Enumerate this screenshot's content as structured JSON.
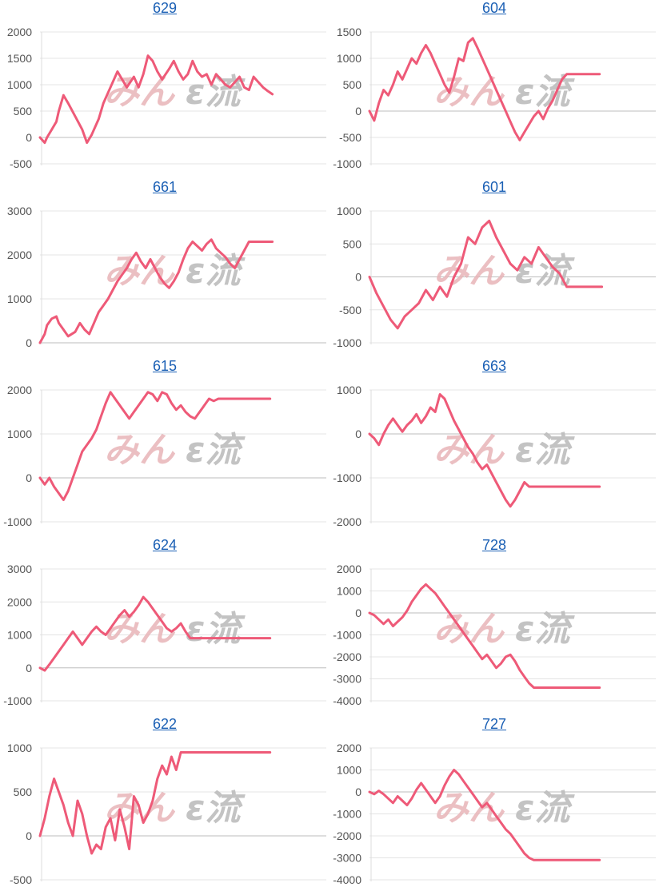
{
  "watermark": {
    "left_text": "みん",
    "right_text": "ε流",
    "left_color": "#e8b4b8",
    "right_color": "#bdbdbd"
  },
  "line_color": "#ee5a78",
  "chart_data": [
    {
      "type": "line",
      "title": "629",
      "ylim": [
        -500,
        2000
      ],
      "yticks": [
        -500,
        0,
        500,
        1000,
        1500,
        2000
      ],
      "x": [
        0,
        2,
        3,
        5,
        7,
        8,
        10,
        12,
        15,
        18,
        20,
        22,
        25,
        27,
        30,
        33,
        35,
        37,
        40,
        42,
        44,
        46,
        48,
        50,
        52,
        55,
        57,
        59,
        61,
        63,
        65,
        67,
        69,
        71,
        73,
        75,
        77,
        79,
        81,
        83,
        85,
        87,
        89,
        91,
        93,
        95,
        97,
        99
      ],
      "values": [
        0,
        -100,
        0,
        150,
        300,
        500,
        800,
        650,
        400,
        150,
        -100,
        50,
        350,
        650,
        950,
        1250,
        1100,
        950,
        1150,
        950,
        1200,
        1550,
        1450,
        1250,
        1100,
        1300,
        1450,
        1250,
        1100,
        1200,
        1450,
        1250,
        1150,
        1200,
        1000,
        1200,
        1100,
        1000,
        950,
        1050,
        1150,
        950,
        900,
        1150,
        1050,
        950,
        880,
        820
      ]
    },
    {
      "type": "line",
      "title": "604",
      "ylim": [
        -1000,
        1500
      ],
      "yticks": [
        -1000,
        -500,
        0,
        500,
        1000,
        1500
      ],
      "x": [
        0,
        2,
        4,
        6,
        8,
        10,
        12,
        14,
        16,
        18,
        20,
        22,
        24,
        26,
        28,
        30,
        32,
        34,
        36,
        38,
        40,
        42,
        44,
        46,
        48,
        50,
        52,
        54,
        56,
        58,
        60,
        62,
        64,
        66,
        68,
        70,
        72,
        74,
        76,
        78,
        80,
        82,
        84,
        86,
        88,
        90,
        92,
        94,
        96,
        98
      ],
      "values": [
        0,
        -180,
        150,
        400,
        300,
        500,
        750,
        600,
        800,
        1000,
        900,
        1100,
        1250,
        1100,
        900,
        700,
        500,
        350,
        650,
        1000,
        950,
        1300,
        1380,
        1200,
        1000,
        800,
        600,
        400,
        200,
        0,
        -200,
        -400,
        -550,
        -400,
        -250,
        -100,
        0,
        -150,
        50,
        200,
        400,
        600,
        700,
        700,
        700,
        700,
        700,
        700,
        700,
        700
      ]
    },
    {
      "type": "line",
      "title": "661",
      "ylim": [
        0,
        3000
      ],
      "yticks": [
        0,
        1000,
        2000,
        3000
      ],
      "x": [
        0,
        2,
        3,
        5,
        7,
        8,
        10,
        12,
        15,
        17,
        19,
        21,
        23,
        25,
        27,
        29,
        31,
        33,
        35,
        37,
        39,
        41,
        43,
        45,
        47,
        49,
        51,
        53,
        55,
        57,
        59,
        61,
        63,
        65,
        67,
        69,
        71,
        73,
        75,
        77,
        79,
        81,
        83,
        85,
        87,
        89,
        91,
        93,
        95,
        97,
        99
      ],
      "values": [
        0,
        200,
        400,
        550,
        600,
        450,
        300,
        150,
        250,
        450,
        300,
        200,
        450,
        700,
        850,
        1000,
        1200,
        1400,
        1550,
        1700,
        1900,
        2050,
        1850,
        1700,
        1900,
        1700,
        1500,
        1350,
        1250,
        1400,
        1600,
        1900,
        2150,
        2300,
        2200,
        2100,
        2250,
        2350,
        2150,
        2050,
        1950,
        1800,
        1700,
        1900,
        2100,
        2300,
        2300,
        2300,
        2300,
        2300,
        2300
      ]
    },
    {
      "type": "line",
      "title": "601",
      "ylim": [
        -1000,
        1000
      ],
      "yticks": [
        -1000,
        -500,
        0,
        500,
        1000
      ],
      "x": [
        0,
        3,
        6,
        9,
        12,
        15,
        18,
        21,
        24,
        27,
        30,
        33,
        36,
        39,
        42,
        45,
        48,
        51,
        54,
        57,
        60,
        63,
        66,
        69,
        72,
        75,
        78,
        81,
        84,
        87,
        90,
        93,
        96,
        99
      ],
      "values": [
        0,
        -250,
        -450,
        -650,
        -780,
        -600,
        -500,
        -400,
        -200,
        -350,
        -150,
        -300,
        0,
        200,
        600,
        500,
        750,
        850,
        600,
        400,
        200,
        100,
        300,
        200,
        450,
        300,
        150,
        50,
        -150,
        -150,
        -150,
        -150,
        -150,
        -150
      ]
    },
    {
      "type": "line",
      "title": "615",
      "ylim": [
        -1000,
        2000
      ],
      "yticks": [
        -1000,
        0,
        1000,
        2000
      ],
      "x": [
        0,
        2,
        4,
        6,
        8,
        10,
        12,
        14,
        16,
        18,
        20,
        22,
        24,
        26,
        28,
        30,
        32,
        34,
        36,
        38,
        40,
        42,
        44,
        46,
        48,
        50,
        52,
        54,
        56,
        58,
        60,
        62,
        64,
        66,
        68,
        70,
        72,
        74,
        76,
        78,
        80,
        82,
        84,
        86,
        88,
        90,
        92,
        94,
        96,
        98
      ],
      "values": [
        0,
        -150,
        0,
        -200,
        -350,
        -500,
        -300,
        0,
        300,
        600,
        750,
        900,
        1100,
        1400,
        1700,
        1950,
        1800,
        1650,
        1500,
        1350,
        1500,
        1650,
        1800,
        1950,
        1900,
        1750,
        1950,
        1900,
        1700,
        1550,
        1650,
        1500,
        1400,
        1350,
        1500,
        1650,
        1800,
        1750,
        1800,
        1800,
        1800,
        1800,
        1800,
        1800,
        1800,
        1800,
        1800,
        1800,
        1800,
        1800
      ]
    },
    {
      "type": "line",
      "title": "663",
      "ylim": [
        -2000,
        1000
      ],
      "yticks": [
        -2000,
        -1000,
        0,
        1000
      ],
      "x": [
        0,
        2,
        4,
        6,
        8,
        10,
        12,
        14,
        16,
        18,
        20,
        22,
        24,
        26,
        28,
        30,
        32,
        34,
        36,
        38,
        40,
        42,
        44,
        46,
        48,
        50,
        52,
        54,
        56,
        58,
        60,
        62,
        64,
        66,
        68,
        70,
        72,
        74,
        76,
        78,
        80,
        82,
        84,
        86,
        88,
        90,
        92,
        94,
        96,
        98
      ],
      "values": [
        0,
        -100,
        -250,
        0,
        200,
        350,
        200,
        50,
        200,
        300,
        450,
        250,
        400,
        600,
        500,
        900,
        800,
        550,
        300,
        100,
        -100,
        -300,
        -450,
        -650,
        -800,
        -700,
        -900,
        -1100,
        -1300,
        -1500,
        -1650,
        -1500,
        -1300,
        -1100,
        -1200,
        -1200,
        -1200,
        -1200,
        -1200,
        -1200,
        -1200,
        -1200,
        -1200,
        -1200,
        -1200,
        -1200,
        -1200,
        -1200,
        -1200,
        -1200
      ]
    },
    {
      "type": "line",
      "title": "624",
      "ylim": [
        -1000,
        3000
      ],
      "yticks": [
        -1000,
        0,
        1000,
        2000,
        3000
      ],
      "x": [
        0,
        2,
        4,
        6,
        8,
        10,
        12,
        14,
        16,
        18,
        20,
        22,
        24,
        26,
        28,
        30,
        32,
        34,
        36,
        38,
        40,
        42,
        44,
        46,
        48,
        50,
        52,
        54,
        56,
        58,
        60,
        62,
        64,
        66,
        68,
        70,
        72,
        74,
        76,
        78,
        80,
        82,
        84,
        86,
        88,
        90,
        92,
        94,
        96,
        98
      ],
      "values": [
        0,
        -80,
        100,
        300,
        500,
        700,
        900,
        1100,
        900,
        700,
        900,
        1100,
        1250,
        1100,
        1000,
        1200,
        1400,
        1600,
        1750,
        1550,
        1700,
        1900,
        2150,
        2000,
        1800,
        1600,
        1400,
        1200,
        1100,
        1200,
        1350,
        1100,
        900,
        900,
        900,
        900,
        900,
        900,
        900,
        900,
        900,
        900,
        900,
        900,
        900,
        900,
        900,
        900,
        900,
        900
      ]
    },
    {
      "type": "line",
      "title": "728",
      "ylim": [
        -4000,
        2000
      ],
      "yticks": [
        -4000,
        -3000,
        -2000,
        -1000,
        0,
        1000,
        2000
      ],
      "x": [
        0,
        2,
        4,
        6,
        8,
        10,
        12,
        14,
        16,
        18,
        20,
        22,
        24,
        26,
        28,
        30,
        32,
        34,
        36,
        38,
        40,
        42,
        44,
        46,
        48,
        50,
        52,
        54,
        56,
        58,
        60,
        62,
        64,
        66,
        68,
        70,
        72,
        74,
        76,
        78,
        80,
        82,
        84,
        86,
        88,
        90,
        92,
        94,
        96,
        98
      ],
      "values": [
        0,
        -100,
        -300,
        -500,
        -300,
        -600,
        -400,
        -200,
        100,
        500,
        800,
        1100,
        1300,
        1100,
        900,
        600,
        300,
        0,
        -300,
        -600,
        -900,
        -1200,
        -1500,
        -1800,
        -2100,
        -1900,
        -2200,
        -2500,
        -2300,
        -2000,
        -1900,
        -2200,
        -2600,
        -2900,
        -3200,
        -3400,
        -3400,
        -3400,
        -3400,
        -3400,
        -3400,
        -3400,
        -3400,
        -3400,
        -3400,
        -3400,
        -3400,
        -3400,
        -3400,
        -3400
      ]
    },
    {
      "type": "line",
      "title": "622",
      "ylim": [
        -500,
        1000
      ],
      "yticks": [
        -500,
        0,
        500,
        1000
      ],
      "x": [
        0,
        2,
        4,
        6,
        8,
        10,
        12,
        14,
        16,
        18,
        20,
        22,
        24,
        26,
        28,
        30,
        32,
        34,
        36,
        38,
        40,
        42,
        44,
        46,
        48,
        50,
        52,
        54,
        56,
        58,
        60,
        62,
        64,
        66,
        68,
        70,
        72,
        74,
        76,
        78,
        80,
        82,
        84,
        86,
        88,
        90,
        92,
        94,
        96,
        98
      ],
      "values": [
        0,
        200,
        450,
        650,
        500,
        350,
        150,
        0,
        400,
        250,
        0,
        -200,
        -100,
        -150,
        100,
        200,
        -50,
        300,
        100,
        -150,
        450,
        350,
        150,
        250,
        400,
        650,
        800,
        700,
        900,
        750,
        950,
        950,
        950,
        950,
        950,
        950,
        950,
        950,
        950,
        950,
        950,
        950,
        950,
        950,
        950,
        950,
        950,
        950,
        950,
        950
      ]
    },
    {
      "type": "line",
      "title": "727",
      "ylim": [
        -4000,
        2000
      ],
      "yticks": [
        -4000,
        -3000,
        -2000,
        -1000,
        0,
        1000,
        2000
      ],
      "x": [
        0,
        2,
        4,
        6,
        8,
        10,
        12,
        14,
        16,
        18,
        20,
        22,
        24,
        26,
        28,
        30,
        32,
        34,
        36,
        38,
        40,
        42,
        44,
        46,
        48,
        50,
        52,
        54,
        56,
        58,
        60,
        62,
        64,
        66,
        68,
        70,
        72,
        74,
        76,
        78,
        80,
        82,
        84,
        86,
        88,
        90,
        92,
        94,
        96,
        98
      ],
      "values": [
        0,
        -100,
        50,
        -100,
        -300,
        -500,
        -200,
        -400,
        -600,
        -300,
        100,
        400,
        100,
        -200,
        -500,
        -200,
        300,
        700,
        1000,
        800,
        500,
        200,
        -100,
        -400,
        -700,
        -500,
        -800,
        -1100,
        -1400,
        -1700,
        -1900,
        -2200,
        -2500,
        -2800,
        -3000,
        -3100,
        -3100,
        -3100,
        -3100,
        -3100,
        -3100,
        -3100,
        -3100,
        -3100,
        -3100,
        -3100,
        -3100,
        -3100,
        -3100,
        -3100
      ]
    }
  ]
}
